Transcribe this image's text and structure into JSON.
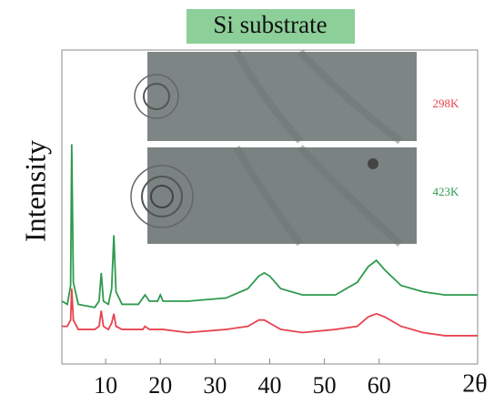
{
  "chart_data": {
    "type": "line",
    "title": "Si substrate",
    "y_label": "Intensity",
    "x_label": "2θ",
    "x": [
      2,
      3,
      3.6,
      3.8,
      4.1,
      5,
      8,
      8.8,
      9.2,
      9.6,
      10.5,
      11.1,
      11.5,
      11.9,
      13,
      16,
      16.8,
      17.2,
      18,
      19.5,
      20,
      20.5,
      25,
      32,
      36,
      38,
      39,
      40,
      42,
      46,
      52,
      56,
      58,
      59.5,
      61,
      64,
      68,
      72,
      78
    ],
    "series": [
      {
        "name": "298K",
        "color": "#e8434f",
        "values": [
          12,
          12,
          14,
          24,
          14,
          11,
          11,
          12,
          17,
          12,
          11,
          13,
          16,
          12,
          11,
          11,
          11,
          12,
          11,
          11,
          11,
          11,
          10,
          11,
          12,
          14,
          14,
          13,
          11,
          10,
          11,
          12,
          15,
          16,
          15,
          12,
          10,
          9,
          9
        ]
      },
      {
        "name": "423K",
        "color": "#2e9a4e",
        "values": [
          20,
          19,
          25,
          70,
          26,
          19,
          18,
          20,
          29,
          20,
          19,
          24,
          41,
          23,
          19,
          19,
          21,
          22,
          20,
          20,
          22,
          20,
          20,
          21,
          24,
          28,
          29,
          28,
          24,
          22,
          22,
          26,
          31,
          33,
          30,
          25,
          23,
          22,
          22
        ]
      }
    ],
    "xlim": [
      2,
      78
    ],
    "ylim": [
      0,
      100
    ],
    "xticks": [
      10,
      20,
      30,
      40,
      50,
      60
    ]
  }
}
